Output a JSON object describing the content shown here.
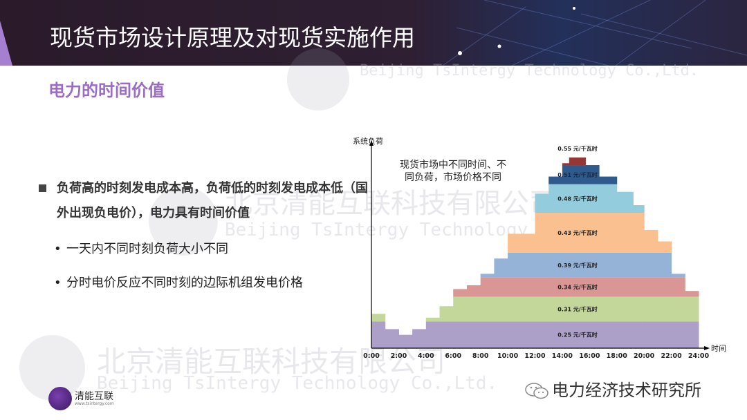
{
  "header": {
    "title": "现货市场设计原理及对现货实施作用"
  },
  "subtitle": "电力的时间价值",
  "bullets": {
    "main": "负荷高的时刻发电成本高，负荷低的时刻发电成本低（国外出现负电价），电力具有时间价值",
    "sub": [
      "一天内不同时刻负荷大小不同",
      "分时电价反应不同时刻的边际机组发电价格"
    ]
  },
  "watermark": {
    "cn": "北京清能互联科技有限公司",
    "en": "Beijing TsIntergy Technology Co.,Ltd."
  },
  "footer": {
    "logo_text": "清能互联",
    "logo_url": "www.tsintergy.com",
    "wechat_account": "电力经济技术研究所"
  },
  "chart_data": {
    "type": "area",
    "subtype": "stepped stacked price bands under load curve",
    "ylabel": "系统负荷",
    "xlabel": "时间",
    "annotation": "现货市场中不同时间、不同负荷，市场价格不同",
    "xlim": [
      0,
      24
    ],
    "x_ticks": [
      "0:00",
      "2:00",
      "4:00",
      "6:00",
      "8:00",
      "10:00",
      "12:00",
      "14:00",
      "16:00",
      "18:00",
      "20:00",
      "22:00",
      "24:00"
    ],
    "ylim": [
      0,
      100
    ],
    "grid": false,
    "load_profile": [
      {
        "start": 0,
        "end": 1,
        "load": 18
      },
      {
        "start": 1,
        "end": 2,
        "load": 10
      },
      {
        "start": 2,
        "end": 3,
        "load": 7
      },
      {
        "start": 3,
        "end": 4,
        "load": 10
      },
      {
        "start": 4,
        "end": 5,
        "load": 16
      },
      {
        "start": 5,
        "end": 6,
        "load": 22
      },
      {
        "start": 6,
        "end": 7,
        "load": 31
      },
      {
        "start": 7,
        "end": 8,
        "load": 33
      },
      {
        "start": 8,
        "end": 9,
        "load": 39
      },
      {
        "start": 9,
        "end": 10,
        "load": 47
      },
      {
        "start": 10,
        "end": 12,
        "load": 60
      },
      {
        "start": 12,
        "end": 13,
        "load": 81
      },
      {
        "start": 13,
        "end": 14,
        "load": 90
      },
      {
        "start": 14,
        "end": 14.5,
        "load": 97
      },
      {
        "start": 14.5,
        "end": 15.7,
        "load": 100
      },
      {
        "start": 15.7,
        "end": 16.7,
        "load": 96
      },
      {
        "start": 16.7,
        "end": 18,
        "load": 90
      },
      {
        "start": 18,
        "end": 19.2,
        "load": 82
      },
      {
        "start": 19.2,
        "end": 20,
        "load": 75
      },
      {
        "start": 20,
        "end": 21,
        "load": 62
      },
      {
        "start": 21,
        "end": 22,
        "load": 56
      },
      {
        "start": 22,
        "end": 23,
        "load": 39
      },
      {
        "start": 23,
        "end": 24,
        "load": 30
      }
    ],
    "bands": [
      {
        "label": "0.25 元/千瓦时",
        "lo": 0,
        "hi": 14,
        "color": "#ac9fc8"
      },
      {
        "label": "0.31 元/千瓦时",
        "lo": 14,
        "hi": 27,
        "color": "#c4d79b"
      },
      {
        "label": "0.34 元/千瓦时",
        "lo": 27,
        "hi": 37,
        "color": "#da9694"
      },
      {
        "label": "0.39 元/千瓦时",
        "lo": 37,
        "hi": 50,
        "color": "#95b3d7"
      },
      {
        "label": "0.43 元/千瓦时",
        "lo": 50,
        "hi": 71,
        "color": "#fac090"
      },
      {
        "label": "0.48 元/千瓦时",
        "lo": 71,
        "hi": 86,
        "color": "#93cddd"
      },
      {
        "label": "0.51 元/千瓦时",
        "lo": 86,
        "hi": 96,
        "color": "#2e5a8e"
      },
      {
        "label": "0.55 元/千瓦时",
        "lo": 96,
        "hi": 100,
        "color": "#953735"
      }
    ]
  }
}
